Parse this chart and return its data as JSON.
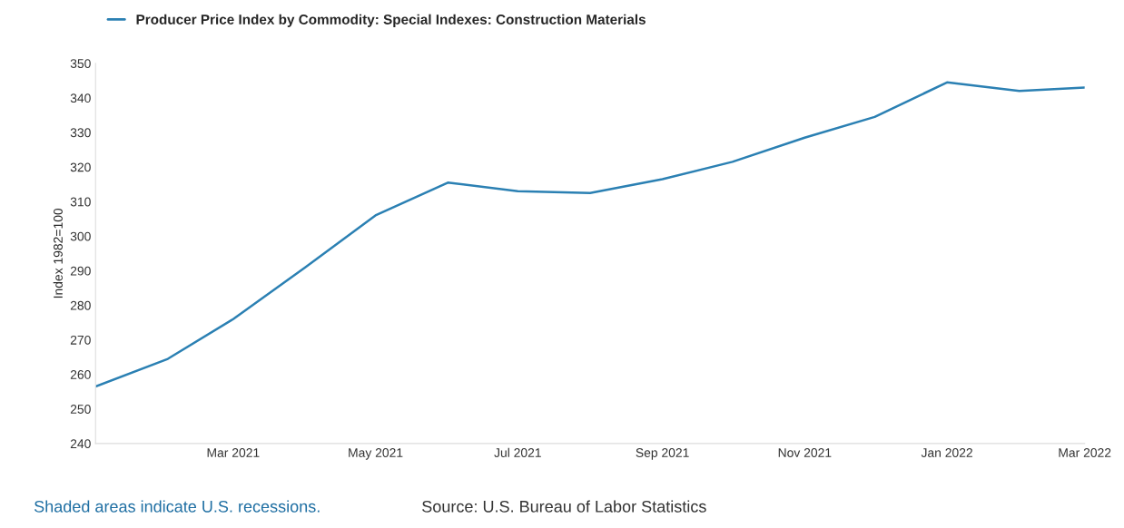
{
  "chart_data": {
    "type": "line",
    "ylabel": "Index 1982=100",
    "x": [
      "2021-01",
      "2021-02",
      "2021-03",
      "2021-04",
      "2021-05",
      "2021-06",
      "2021-07",
      "2021-08",
      "2021-09",
      "2021-10",
      "2021-11",
      "2021-12",
      "2022-01",
      "2022-02",
      "2022-03"
    ],
    "series": [
      {
        "name": "Producer Price Index by Commodity: Special Indexes: Construction Materials",
        "color": "#2b80b3",
        "values": [
          256.5,
          264.5,
          276,
          291,
          306,
          315.5,
          313,
          312.5,
          316.5,
          321.5,
          328.5,
          334.5,
          344.5,
          342,
          343
        ]
      }
    ],
    "xlim": [
      "2021-01",
      "2022-03"
    ],
    "xticks": [
      {
        "value": "2021-03",
        "label": "Mar 2021"
      },
      {
        "value": "2021-05",
        "label": "May 2021"
      },
      {
        "value": "2021-07",
        "label": "Jul 2021"
      },
      {
        "value": "2021-09",
        "label": "Sep 2021"
      },
      {
        "value": "2021-11",
        "label": "Nov 2021"
      },
      {
        "value": "2022-01",
        "label": "Jan 2022"
      },
      {
        "value": "2022-03",
        "label": "Mar 2022"
      }
    ],
    "ylim": [
      240,
      350
    ],
    "yticks": [
      240,
      250,
      260,
      270,
      280,
      290,
      300,
      310,
      320,
      330,
      340,
      350
    ],
    "grid": false,
    "legend": "top left",
    "marker": "none",
    "line_style": "solid",
    "annotations": [
      "Shaded areas indicate U.S. recessions.",
      "Source: U.S. Bureau of Labor Statistics"
    ]
  }
}
